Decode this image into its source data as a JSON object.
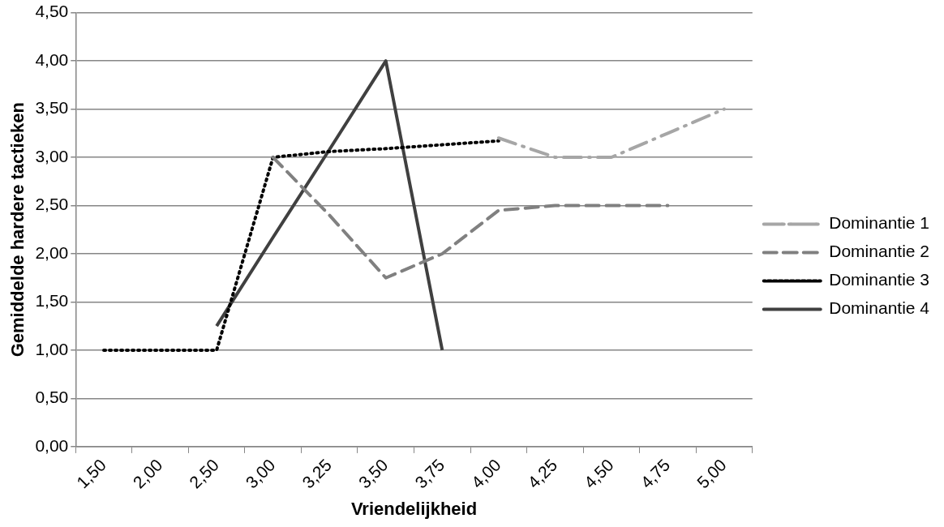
{
  "chart_data": {
    "type": "line",
    "xlabel": "Vriendelijkheid",
    "ylabel": "Gemiddelde hardere tactieken",
    "categories": [
      "1,50",
      "2,00",
      "2,50",
      "3,00",
      "3,25",
      "3,50",
      "3,75",
      "4,00",
      "4,25",
      "4,50",
      "4,75",
      "5,00"
    ],
    "series": [
      {
        "name": "Dominantie 1",
        "color": "#a6a6a6",
        "line_style": "dashdot",
        "values": [
          null,
          null,
          null,
          null,
          null,
          null,
          null,
          3.2,
          3.0,
          3.0,
          3.25,
          3.5
        ]
      },
      {
        "name": "Dominantie 2",
        "color": "#808080",
        "line_style": "dashed",
        "values": [
          null,
          null,
          null,
          3.0,
          2.4,
          1.75,
          2.0,
          2.45,
          2.5,
          2.5,
          2.5,
          null
        ]
      },
      {
        "name": "Dominantie 3",
        "color": "#000000",
        "line_style": "dotted",
        "values": [
          1.0,
          1.0,
          1.0,
          3.0,
          3.06,
          3.09,
          3.13,
          3.17,
          null,
          null,
          null,
          null
        ]
      },
      {
        "name": "Dominantie 4",
        "color": "#404040",
        "line_style": "solid",
        "values": [
          null,
          null,
          1.25,
          2.17,
          3.08,
          4.0,
          1.0,
          null,
          null,
          null,
          null,
          null
        ]
      }
    ],
    "ylim": [
      0,
      4.5
    ],
    "yticks": [
      {
        "value": 0,
        "label": "0,00"
      },
      {
        "value": 0.5,
        "label": "0,50"
      },
      {
        "value": 1,
        "label": "1,00"
      },
      {
        "value": 1.5,
        "label": "1,50"
      },
      {
        "value": 2,
        "label": "2,00"
      },
      {
        "value": 2.5,
        "label": "2,50"
      },
      {
        "value": 3,
        "label": "3,00"
      },
      {
        "value": 3.5,
        "label": "3,50"
      },
      {
        "value": 4,
        "label": "4,00"
      },
      {
        "value": 4.5,
        "label": "4,50"
      }
    ],
    "grid": "y",
    "legend": "right",
    "marker": "none"
  }
}
